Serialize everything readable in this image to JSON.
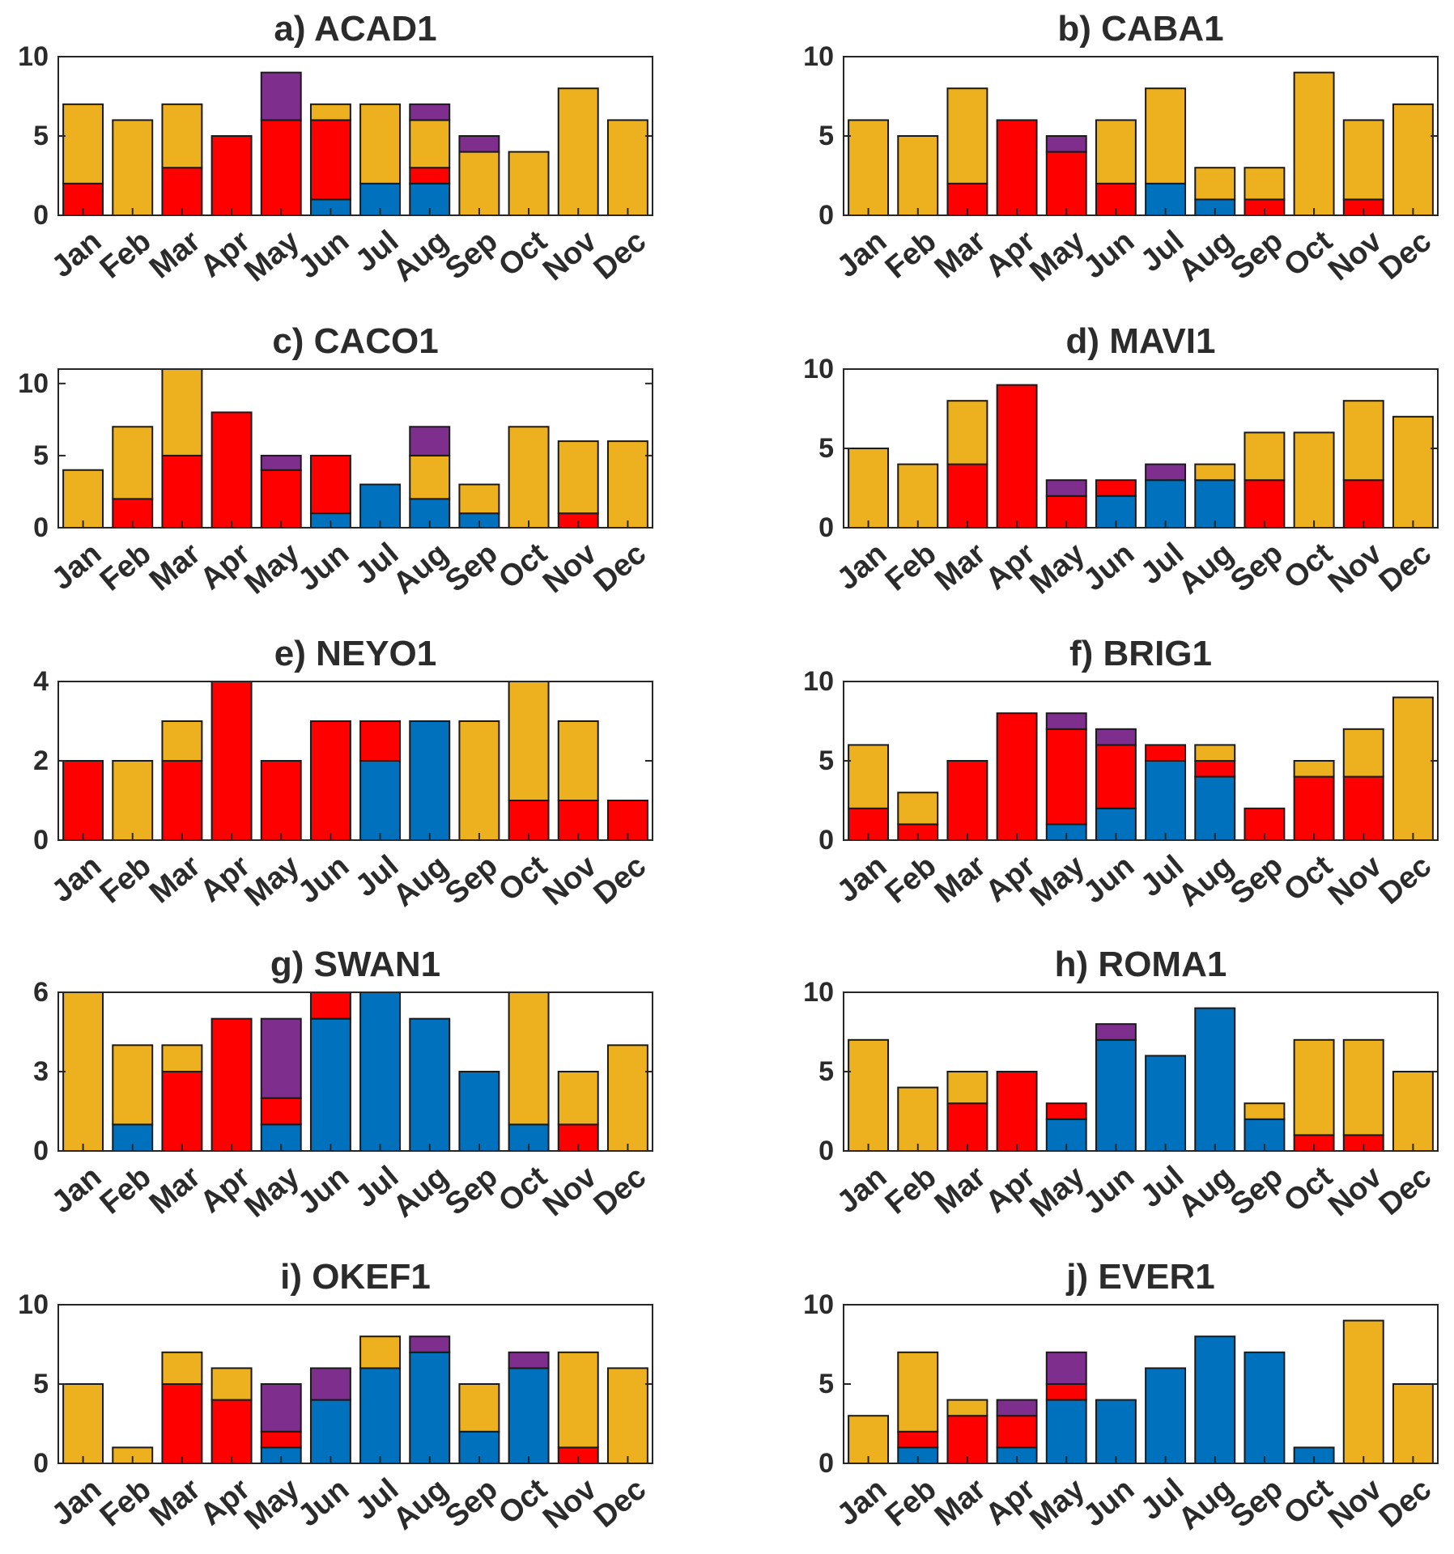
{
  "colors": {
    "blue": "#0072BD",
    "red": "#FF0000",
    "purple": "#7E2F8E",
    "orange": "#EDB120"
  },
  "chart_data": [
    {
      "type": "stacked-bar",
      "title": "a) ACAD1",
      "categories": [
        "Jan",
        "Feb",
        "Mar",
        "Apr",
        "May",
        "Jun",
        "Jul",
        "Aug",
        "Sep",
        "Oct",
        "Nov",
        "Dec"
      ],
      "ylim": [
        0,
        10
      ],
      "yticks": [
        0,
        5,
        10
      ],
      "series": [
        {
          "name": "blue",
          "values": [
            0,
            0,
            0,
            0,
            0,
            1,
            2,
            2,
            0,
            0,
            0,
            0
          ]
        },
        {
          "name": "red",
          "values": [
            2,
            0,
            3,
            5,
            6,
            5,
            0,
            1,
            0,
            0,
            0,
            0
          ]
        },
        {
          "name": "orange",
          "values": [
            5,
            6,
            4,
            0,
            0,
            1,
            5,
            3,
            4,
            4,
            8,
            6
          ]
        },
        {
          "name": "purple",
          "values": [
            0,
            0,
            0,
            0,
            3,
            0,
            0,
            1,
            1,
            0,
            0,
            0
          ]
        }
      ]
    },
    {
      "type": "stacked-bar",
      "title": "b) CABA1",
      "categories": [
        "Jan",
        "Feb",
        "Mar",
        "Apr",
        "May",
        "Jun",
        "Jul",
        "Aug",
        "Sep",
        "Oct",
        "Nov",
        "Dec"
      ],
      "ylim": [
        0,
        10
      ],
      "yticks": [
        0,
        5,
        10
      ],
      "series": [
        {
          "name": "blue",
          "values": [
            0,
            0,
            0,
            0,
            0,
            0,
            2,
            1,
            0,
            0,
            0,
            0
          ]
        },
        {
          "name": "red",
          "values": [
            0,
            0,
            2,
            6,
            4,
            2,
            0,
            0,
            1,
            0,
            1,
            0
          ]
        },
        {
          "name": "orange",
          "values": [
            6,
            5,
            6,
            0,
            0,
            4,
            6,
            2,
            2,
            9,
            5,
            7
          ]
        },
        {
          "name": "purple",
          "values": [
            0,
            0,
            0,
            0,
            1,
            0,
            0,
            0,
            0,
            0,
            0,
            0
          ]
        }
      ]
    },
    {
      "type": "stacked-bar",
      "title": "c) CACO1",
      "categories": [
        "Jan",
        "Feb",
        "Mar",
        "Apr",
        "May",
        "Jun",
        "Jul",
        "Aug",
        "Sep",
        "Oct",
        "Nov",
        "Dec"
      ],
      "ylim": [
        0,
        11
      ],
      "yticks": [
        0,
        5,
        10
      ],
      "series": [
        {
          "name": "blue",
          "values": [
            0,
            0,
            0,
            0,
            0,
            1,
            3,
            2,
            1,
            0,
            0,
            0
          ]
        },
        {
          "name": "red",
          "values": [
            0,
            2,
            5,
            8,
            4,
            4,
            0,
            0,
            0,
            0,
            1,
            0
          ]
        },
        {
          "name": "orange",
          "values": [
            4,
            5,
            6,
            0,
            0,
            0,
            0,
            3,
            2,
            7,
            5,
            6
          ]
        },
        {
          "name": "purple",
          "values": [
            0,
            0,
            0,
            0,
            1,
            0,
            0,
            2,
            0,
            0,
            0,
            0
          ]
        }
      ]
    },
    {
      "type": "stacked-bar",
      "title": "d) MAVI1",
      "categories": [
        "Jan",
        "Feb",
        "Mar",
        "Apr",
        "May",
        "Jun",
        "Jul",
        "Aug",
        "Sep",
        "Oct",
        "Nov",
        "Dec"
      ],
      "ylim": [
        0,
        10
      ],
      "yticks": [
        0,
        5,
        10
      ],
      "series": [
        {
          "name": "blue",
          "values": [
            0,
            0,
            0,
            0,
            0,
            2,
            3,
            3,
            0,
            0,
            0,
            0
          ]
        },
        {
          "name": "red",
          "values": [
            0,
            0,
            4,
            9,
            2,
            1,
            0,
            0,
            3,
            0,
            3,
            0
          ]
        },
        {
          "name": "orange",
          "values": [
            5,
            4,
            4,
            0,
            0,
            0,
            0,
            1,
            3,
            6,
            5,
            7
          ]
        },
        {
          "name": "purple",
          "values": [
            0,
            0,
            0,
            0,
            1,
            0,
            1,
            0,
            0,
            0,
            0,
            0
          ]
        }
      ]
    },
    {
      "type": "stacked-bar",
      "title": "e) NEYO1",
      "categories": [
        "Jan",
        "Feb",
        "Mar",
        "Apr",
        "May",
        "Jun",
        "Jul",
        "Aug",
        "Sep",
        "Oct",
        "Nov",
        "Dec"
      ],
      "ylim": [
        0,
        4
      ],
      "yticks": [
        0,
        2,
        4
      ],
      "series": [
        {
          "name": "blue",
          "values": [
            0,
            0,
            0,
            0,
            0,
            0,
            2,
            3,
            0,
            0,
            0,
            0
          ]
        },
        {
          "name": "red",
          "values": [
            2,
            0,
            2,
            4,
            2,
            3,
            1,
            0,
            0,
            1,
            1,
            1
          ]
        },
        {
          "name": "orange",
          "values": [
            0,
            2,
            1,
            0,
            0,
            0,
            0,
            0,
            3,
            3,
            2,
            0
          ]
        },
        {
          "name": "purple",
          "values": [
            0,
            0,
            0,
            0,
            0,
            0,
            0,
            0,
            0,
            0,
            0,
            0
          ]
        }
      ]
    },
    {
      "type": "stacked-bar",
      "title": "f) BRIG1",
      "categories": [
        "Jan",
        "Feb",
        "Mar",
        "Apr",
        "May",
        "Jun",
        "Jul",
        "Aug",
        "Sep",
        "Oct",
        "Nov",
        "Dec"
      ],
      "ylim": [
        0,
        10
      ],
      "yticks": [
        0,
        5,
        10
      ],
      "series": [
        {
          "name": "blue",
          "values": [
            0,
            0,
            0,
            0,
            1,
            2,
            5,
            4,
            0,
            0,
            0,
            0
          ]
        },
        {
          "name": "red",
          "values": [
            2,
            1,
            5,
            8,
            6,
            4,
            1,
            1,
            2,
            4,
            4,
            0
          ]
        },
        {
          "name": "orange",
          "values": [
            4,
            2,
            0,
            0,
            0,
            0,
            0,
            1,
            0,
            1,
            3,
            9
          ]
        },
        {
          "name": "purple",
          "values": [
            0,
            0,
            0,
            0,
            1,
            1,
            0,
            0,
            0,
            0,
            0,
            0
          ]
        }
      ]
    },
    {
      "type": "stacked-bar",
      "title": "g) SWAN1",
      "categories": [
        "Jan",
        "Feb",
        "Mar",
        "Apr",
        "May",
        "Jun",
        "Jul",
        "Aug",
        "Sep",
        "Oct",
        "Nov",
        "Dec"
      ],
      "ylim": [
        0,
        6
      ],
      "yticks": [
        0,
        3,
        6
      ],
      "series": [
        {
          "name": "blue",
          "values": [
            0,
            1,
            0,
            0,
            1,
            5,
            6,
            5,
            3,
            1,
            0,
            0
          ]
        },
        {
          "name": "red",
          "values": [
            0,
            0,
            3,
            5,
            1,
            1,
            0,
            0,
            0,
            0,
            1,
            0
          ]
        },
        {
          "name": "orange",
          "values": [
            6,
            3,
            1,
            0,
            0,
            0,
            0,
            0,
            0,
            5,
            2,
            4
          ]
        },
        {
          "name": "purple",
          "values": [
            0,
            0,
            0,
            0,
            3,
            0,
            0,
            0,
            0,
            0,
            0,
            0
          ]
        }
      ]
    },
    {
      "type": "stacked-bar",
      "title": "h) ROMA1",
      "categories": [
        "Jan",
        "Feb",
        "Mar",
        "Apr",
        "May",
        "Jun",
        "Jul",
        "Aug",
        "Sep",
        "Oct",
        "Nov",
        "Dec"
      ],
      "ylim": [
        0,
        10
      ],
      "yticks": [
        0,
        5,
        10
      ],
      "series": [
        {
          "name": "blue",
          "values": [
            0,
            0,
            0,
            0,
            2,
            7,
            6,
            9,
            2,
            0,
            0,
            0
          ]
        },
        {
          "name": "red",
          "values": [
            0,
            0,
            3,
            5,
            1,
            0,
            0,
            0,
            0,
            1,
            1,
            0
          ]
        },
        {
          "name": "orange",
          "values": [
            7,
            4,
            2,
            0,
            0,
            0,
            0,
            0,
            1,
            6,
            6,
            5
          ]
        },
        {
          "name": "purple",
          "values": [
            0,
            0,
            0,
            0,
            0,
            1,
            0,
            0,
            0,
            0,
            0,
            0
          ]
        }
      ]
    },
    {
      "type": "stacked-bar",
      "title": "i) OKEF1",
      "categories": [
        "Jan",
        "Feb",
        "Mar",
        "Apr",
        "May",
        "Jun",
        "Jul",
        "Aug",
        "Sep",
        "Oct",
        "Nov",
        "Dec"
      ],
      "ylim": [
        0,
        10
      ],
      "yticks": [
        0,
        5,
        10
      ],
      "series": [
        {
          "name": "blue",
          "values": [
            0,
            0,
            0,
            0,
            1,
            4,
            6,
            7,
            2,
            6,
            0,
            0
          ]
        },
        {
          "name": "red",
          "values": [
            0,
            0,
            5,
            4,
            1,
            0,
            0,
            0,
            0,
            0,
            1,
            0
          ]
        },
        {
          "name": "orange",
          "values": [
            5,
            1,
            2,
            2,
            0,
            0,
            2,
            0,
            3,
            0,
            6,
            6
          ]
        },
        {
          "name": "purple",
          "values": [
            0,
            0,
            0,
            0,
            3,
            2,
            0,
            1,
            0,
            1,
            0,
            0
          ]
        }
      ]
    },
    {
      "type": "stacked-bar",
      "title": "j) EVER1",
      "categories": [
        "Jan",
        "Feb",
        "Mar",
        "Apr",
        "May",
        "Jun",
        "Jul",
        "Aug",
        "Sep",
        "Oct",
        "Nov",
        "Dec"
      ],
      "ylim": [
        0,
        10
      ],
      "yticks": [
        0,
        5,
        10
      ],
      "series": [
        {
          "name": "blue",
          "values": [
            0,
            1,
            0,
            1,
            4,
            4,
            6,
            8,
            7,
            1,
            0,
            0
          ]
        },
        {
          "name": "red",
          "values": [
            0,
            1,
            3,
            2,
            1,
            0,
            0,
            0,
            0,
            0,
            0,
            0
          ]
        },
        {
          "name": "orange",
          "values": [
            3,
            5,
            1,
            0,
            0,
            0,
            0,
            0,
            0,
            0,
            9,
            5
          ]
        },
        {
          "name": "purple",
          "values": [
            0,
            0,
            0,
            1,
            2,
            0,
            0,
            0,
            0,
            0,
            0,
            0
          ]
        }
      ]
    }
  ]
}
